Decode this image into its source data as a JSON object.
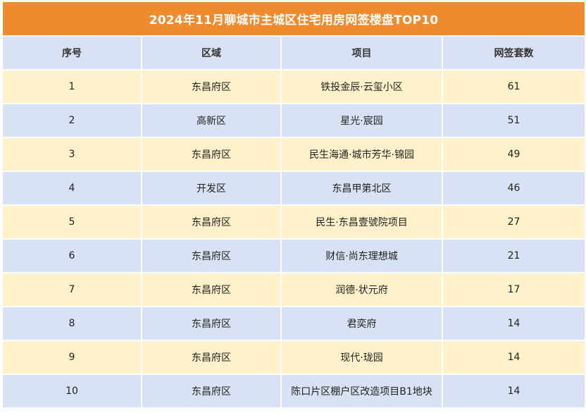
{
  "title": "2024年11月聊城市主城区住宅用房网签楼盘TOP10",
  "columns": [
    "序号",
    "区域",
    "项目",
    "网签套数"
  ],
  "rows": [
    {
      "no": "1",
      "district": "东昌府区",
      "project": "铁投金辰·云玺小区",
      "count": "61"
    },
    {
      "no": "2",
      "district": "高新区",
      "project": "星光·宸园",
      "count": "51"
    },
    {
      "no": "3",
      "district": "东昌府区",
      "project": "民生海通·城市芳华·锦园",
      "count": "49"
    },
    {
      "no": "4",
      "district": "开发区",
      "project": "东昌甲第北区",
      "count": "46"
    },
    {
      "no": "5",
      "district": "东昌府区",
      "project": "民生·东昌壹號院项目",
      "count": "27"
    },
    {
      "no": "6",
      "district": "东昌府区",
      "project": "财信·尚东理想城",
      "count": "21"
    },
    {
      "no": "7",
      "district": "东昌府区",
      "project": "润德·状元府",
      "count": "17"
    },
    {
      "no": "8",
      "district": "东昌府区",
      "project": "君奕府",
      "count": "14"
    },
    {
      "no": "9",
      "district": "东昌府区",
      "project": "现代·珑园",
      "count": "14"
    },
    {
      "no": "10",
      "district": "东昌府区",
      "project": "陈口片区棚户区改造项目B1地块",
      "count": "14"
    }
  ],
  "colors": {
    "title_bg": "#ef8a2f",
    "header_bg": "#d9e2f4",
    "row_yellow": "#fff2cb",
    "row_blue": "#d9e2f4"
  }
}
